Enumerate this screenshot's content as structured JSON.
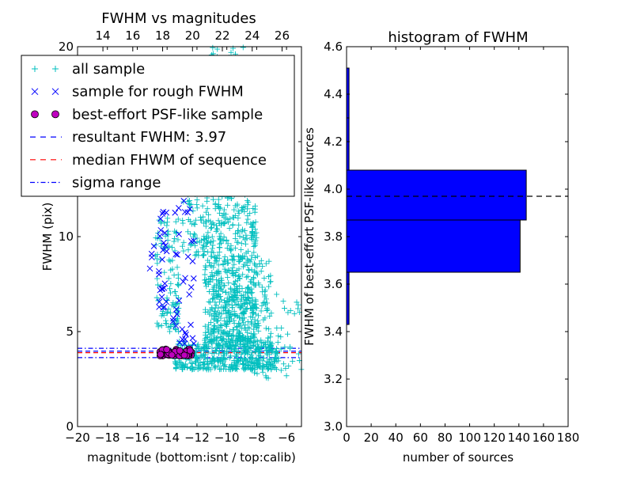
{
  "chart_data": [
    {
      "type": "scatter",
      "title": "FWHM vs magnitudes",
      "xlabel": "magnitude (bottom:isnt / top:calib)",
      "ylabel": "FWHM (pix)",
      "xlim": [
        -20,
        -5
      ],
      "ylim": [
        0,
        20
      ],
      "xticks": [
        -20,
        -18,
        -16,
        -14,
        -12,
        -10,
        -8,
        -6
      ],
      "xtick_labels": [
        "−20",
        "−18",
        "−16",
        "−14",
        "−12",
        "−10",
        "−8",
        "−6"
      ],
      "yticks": [
        0,
        5,
        10,
        15,
        20
      ],
      "ytick_labels": [
        "0",
        "5",
        "10",
        "15",
        "20"
      ],
      "top_xticks": [
        14,
        16,
        18,
        20,
        22,
        24,
        26
      ],
      "top_xtick_labels": [
        "14",
        "16",
        "18",
        "20",
        "22",
        "24",
        "26"
      ],
      "top_axis_offset": 32.3,
      "legend": [
        {
          "label": "all sample",
          "marker": "+",
          "color": "#00bfbf"
        },
        {
          "label": "sample for rough FWHM",
          "marker": "x",
          "color": "#0000ff"
        },
        {
          "label": "best-effort PSF-like sample",
          "marker": "o",
          "color": "#bf00bf"
        },
        {
          "label": "resultant FWHM: 3.97",
          "marker": "dashed",
          "color": "#0000ff"
        },
        {
          "label": "median FHWM of sequence",
          "marker": "dashed",
          "color": "#ff0000"
        },
        {
          "label": "sigma range",
          "marker": "dashdot",
          "color": "#0000ff"
        }
      ],
      "legend_position": "upper left",
      "series": [
        {
          "name": "all sample",
          "marker": "+",
          "color": "#00bfbf",
          "clusters": [
            {
              "x_range": [
                -13.5,
                -6.5
              ],
              "y_range": [
                3.0,
                4.5
              ],
              "count": 420
            },
            {
              "x_range": [
                -11.5,
                -8
              ],
              "y_range": [
                4.5,
                12
              ],
              "count": 520
            },
            {
              "x_range": [
                -11,
                -7
              ],
              "y_range": [
                4,
                9
              ],
              "count": 220
            },
            {
              "x_range": [
                -14.8,
                -13.2
              ],
              "y_range": [
                5,
                11
              ],
              "count": 110
            },
            {
              "x_range": [
                -13,
                -11.5
              ],
              "y_range": [
                9,
                19
              ],
              "count": 170
            },
            {
              "x_range": [
                -11.5,
                -8.5
              ],
              "y_range": [
                12,
                20
              ],
              "count": 170
            },
            {
              "x_range": [
                -8.5,
                -5
              ],
              "y_range": [
                2.5,
                7
              ],
              "count": 60
            }
          ]
        },
        {
          "name": "sample for rough FWHM",
          "marker": "x",
          "color": "#0000ff",
          "clusters": [
            {
              "x_range": [
                -14.6,
                -14.0
              ],
              "y_range": [
                6.2,
                11.5
              ],
              "count": 25
            },
            {
              "x_range": [
                -13.6,
                -12.2
              ],
              "y_range": [
                4.2,
                11.5
              ],
              "count": 32
            },
            {
              "x_range": [
                -13.6,
                -12.2
              ],
              "y_range": [
                11.5,
                15.5
              ],
              "count": 10
            },
            {
              "x_range": [
                -15.2,
                -14.6
              ],
              "y_range": [
                7.5,
                9.5
              ],
              "count": 4
            }
          ]
        },
        {
          "name": "best-effort PSF-like sample",
          "marker": "o",
          "color": "#bf00bf",
          "clusters": [
            {
              "x_range": [
                -14.6,
                -12.3
              ],
              "y_range": [
                3.72,
                4.08
              ],
              "count": 55
            }
          ]
        }
      ],
      "hlines": [
        {
          "name": "resultant FWHM",
          "y": 3.97,
          "style": "dashed",
          "color": "#0000ff"
        },
        {
          "name": "median FHWM of sequence",
          "y": 3.89,
          "style": "dashed",
          "color": "#ff0000"
        },
        {
          "name": "sigma range",
          "y": 4.12,
          "style": "dashdot",
          "color": "#0000ff"
        },
        {
          "name": "sigma range",
          "y": 3.63,
          "style": "dashdot",
          "color": "#0000ff"
        }
      ]
    },
    {
      "type": "bar",
      "orientation": "horizontal",
      "title": "histogram of FWHM",
      "xlabel": "number of sources",
      "ylabel": "FWHM of best-effort PSF-like sources",
      "xlim": [
        0,
        180
      ],
      "ylim": [
        3.0,
        4.6
      ],
      "xticks": [
        0,
        20,
        40,
        60,
        80,
        100,
        120,
        140,
        160,
        180
      ],
      "xtick_labels": [
        "0",
        "20",
        "40",
        "60",
        "80",
        "100",
        "120",
        "140",
        "160",
        "180"
      ],
      "yticks": [
        3.0,
        3.2,
        3.4,
        3.6,
        3.8,
        4.0,
        4.2,
        4.4,
        4.6
      ],
      "ytick_labels": [
        "3.0",
        "3.2",
        "3.4",
        "3.6",
        "3.8",
        "4.0",
        "4.2",
        "4.4",
        "4.6"
      ],
      "color": "#0000ff",
      "bins": [
        {
          "y0": 3.43,
          "y1": 3.65,
          "count": 2
        },
        {
          "y0": 3.65,
          "y1": 3.87,
          "count": 141
        },
        {
          "y0": 3.87,
          "y1": 4.08,
          "count": 146
        },
        {
          "y0": 4.08,
          "y1": 4.3,
          "count": 2
        },
        {
          "y0": 4.3,
          "y1": 4.51,
          "count": 2
        }
      ],
      "hline": {
        "y": 3.97,
        "style": "dashed",
        "color": "#000000"
      }
    }
  ]
}
